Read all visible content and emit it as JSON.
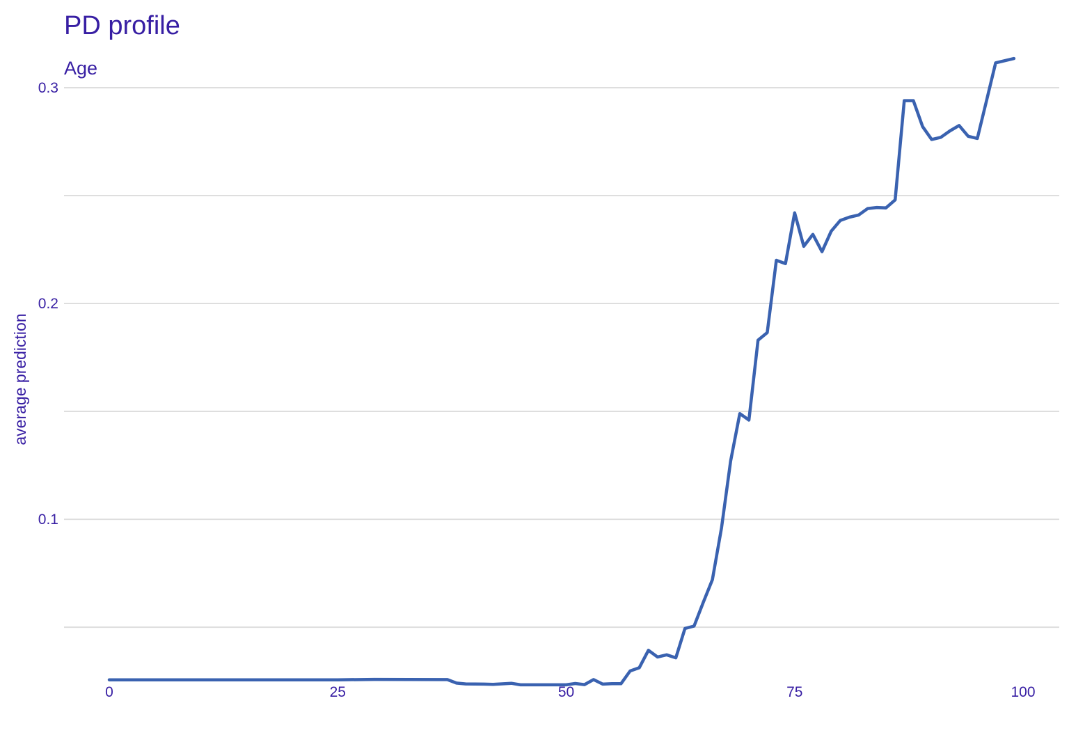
{
  "colors": {
    "text": "#371ea3",
    "line": "#3a62b0",
    "grid": "#dedede",
    "background": "#ffffff"
  },
  "chart_data": {
    "type": "line",
    "title": "PD profile",
    "subtitle": "Age",
    "xlabel": "",
    "ylabel": "average prediction",
    "xlim": [
      0,
      100
    ],
    "ylim": [
      0.021,
      0.3
    ],
    "xticks": [
      0,
      25,
      50,
      75,
      100
    ],
    "yticks": [
      0.1,
      0.2,
      0.3
    ],
    "ygrid_minor": [
      0.05,
      0.15,
      0.25
    ],
    "grid": true,
    "series": [
      {
        "x": [
          0,
          25,
          29,
          37,
          38,
          39,
          41,
          42,
          44,
          45,
          50,
          51,
          52,
          53,
          54,
          55,
          56,
          57,
          58,
          59,
          60,
          61,
          62,
          63,
          64,
          65,
          66,
          67,
          68,
          69,
          70,
          71,
          72,
          73,
          74,
          75,
          76,
          77,
          78,
          79,
          80,
          81,
          82,
          83,
          84,
          85,
          86,
          87,
          88,
          89,
          90,
          91,
          92,
          93,
          94,
          95,
          96,
          97,
          99
        ],
        "y": [
          0.0256,
          0.0256,
          0.0258,
          0.0257,
          0.0241,
          0.0237,
          0.0236,
          0.0235,
          0.024,
          0.0233,
          0.0233,
          0.0239,
          0.0234,
          0.0257,
          0.0236,
          0.0238,
          0.0238,
          0.0297,
          0.0312,
          0.0393,
          0.0362,
          0.0372,
          0.0358,
          0.0494,
          0.0505,
          0.0615,
          0.072,
          0.096,
          0.127,
          0.149,
          0.146,
          0.183,
          0.1865,
          0.22,
          0.2185,
          0.242,
          0.2265,
          0.232,
          0.224,
          0.2335,
          0.2385,
          0.24,
          0.241,
          0.244,
          0.2445,
          0.2443,
          0.248,
          0.294,
          0.294,
          0.282,
          0.276,
          0.277,
          0.28,
          0.2825,
          0.2775,
          0.2765,
          0.294,
          0.3115,
          0.3135
        ]
      }
    ]
  }
}
